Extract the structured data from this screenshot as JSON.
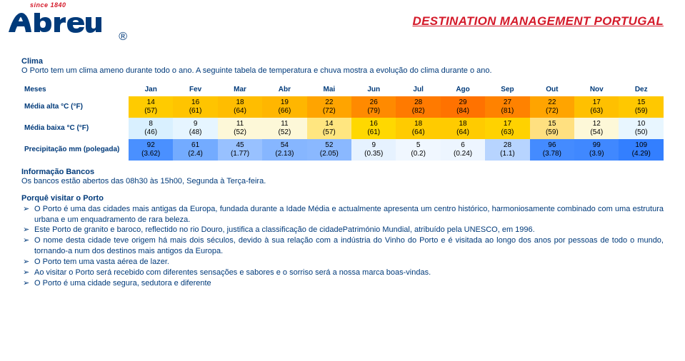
{
  "logo": {
    "since_text": "since 1840",
    "reg_mark": "®",
    "brand_svg_fill": "#003a7a"
  },
  "page_title": "DESTINATION MANAGEMENT PORTUGAL",
  "clima": {
    "label": "Clima",
    "intro": "O Porto tem um clima ameno durante todo o ano. A seguinte tabela de temperatura e chuva mostra a evolução do clima durante o ano."
  },
  "table": {
    "header_label": "Meses",
    "months": [
      "Jan",
      "Fev",
      "Mar",
      "Abr",
      "Mai",
      "Jun",
      "Jul",
      "Ago",
      "Sep",
      "Out",
      "Nov",
      "Dez"
    ],
    "rows": [
      {
        "label": "Média alta °C (°F)",
        "cells": [
          {
            "v1": "14",
            "v2": "(57)",
            "bg": "#ffcb00"
          },
          {
            "v1": "16",
            "v2": "(61)",
            "bg": "#ffc400"
          },
          {
            "v1": "18",
            "v2": "(64)",
            "bg": "#ffbd00"
          },
          {
            "v1": "19",
            "v2": "(66)",
            "bg": "#ffb600"
          },
          {
            "v1": "22",
            "v2": "(72)",
            "bg": "#ffa400"
          },
          {
            "v1": "26",
            "v2": "(79)",
            "bg": "#ff8a00"
          },
          {
            "v1": "28",
            "v2": "(82)",
            "bg": "#ff7a00"
          },
          {
            "v1": "29",
            "v2": "(84)",
            "bg": "#ff7200"
          },
          {
            "v1": "27",
            "v2": "(81)",
            "bg": "#ff8200"
          },
          {
            "v1": "22",
            "v2": "(72)",
            "bg": "#ffa400"
          },
          {
            "v1": "17",
            "v2": "(63)",
            "bg": "#ffc000"
          },
          {
            "v1": "15",
            "v2": "(59)",
            "bg": "#ffc800"
          }
        ]
      },
      {
        "label": "Média baixa °C (°F)",
        "cells": [
          {
            "v1": "8",
            "v2": "(46)",
            "bg": "#d9f0ff"
          },
          {
            "v1": "9",
            "v2": "(48)",
            "bg": "#e6f5ff"
          },
          {
            "v1": "11",
            "v2": "(52)",
            "bg": "#fdf8d8"
          },
          {
            "v1": "11",
            "v2": "(52)",
            "bg": "#fdf8d8"
          },
          {
            "v1": "14",
            "v2": "(57)",
            "bg": "#ffe680"
          },
          {
            "v1": "16",
            "v2": "(61)",
            "bg": "#ffd800"
          },
          {
            "v1": "18",
            "v2": "(64)",
            "bg": "#ffcb00"
          },
          {
            "v1": "18",
            "v2": "(64)",
            "bg": "#ffcb00"
          },
          {
            "v1": "17",
            "v2": "(63)",
            "bg": "#ffd200"
          },
          {
            "v1": "15",
            "v2": "(59)",
            "bg": "#ffe080"
          },
          {
            "v1": "12",
            "v2": "(54)",
            "bg": "#fdf8d8"
          },
          {
            "v1": "10",
            "v2": "(50)",
            "bg": "#e8f6ff"
          }
        ]
      },
      {
        "label": "Precipitação mm (polegada)",
        "cells": [
          {
            "v1": "92",
            "v2": "(3.62)",
            "bg": "#4a90ff"
          },
          {
            "v1": "61",
            "v2": "(2.4)",
            "bg": "#73abff"
          },
          {
            "v1": "45",
            "v2": "(1.77)",
            "bg": "#98c1ff"
          },
          {
            "v1": "54",
            "v2": "(2.13)",
            "bg": "#86b6ff"
          },
          {
            "v1": "52",
            "v2": "(2.05)",
            "bg": "#8ab8ff"
          },
          {
            "v1": "9",
            "v2": "(0.35)",
            "bg": "#e6f2ff"
          },
          {
            "v1": "5",
            "v2": "(0.2)",
            "bg": "#f0f7ff"
          },
          {
            "v1": "6",
            "v2": "(0.24)",
            "bg": "#edf5ff"
          },
          {
            "v1": "28",
            "v2": "(1.1)",
            "bg": "#b7d4ff"
          },
          {
            "v1": "96",
            "v2": "(3.78)",
            "bg": "#448bff"
          },
          {
            "v1": "99",
            "v2": "(3.9)",
            "bg": "#4088ff"
          },
          {
            "v1": "109",
            "v2": "(4.29)",
            "bg": "#337fff"
          }
        ]
      }
    ]
  },
  "bank": {
    "label": "Informação Bancos",
    "text": "Os bancos estão abertos das 08h30 às 15h00, Segunda à Terça-feira."
  },
  "visit": {
    "label": "Porquê visitar o Porto",
    "bullets": [
      "O Porto é uma das cidades mais antigas da Europa, fundada durante a Idade Média e actualmente apresenta um centro histórico, harmoniosamente combinado com uma estrutura urbana e um enquadramento de rara beleza.",
      "Este Porto de granito e baroco, reflectido no rio Douro, justifica a classificação de cidadePatrimónio Mundial, atribuído pela UNESCO, em 1996.",
      "O nome desta cidade teve origem há mais dois séculos, devido à sua relação com a indústria do Vinho do Porto e é visitada ao longo dos anos por pessoas de todo o mundo, tornando-a num dos destinos mais antigos da Europa.",
      "O Porto tem uma vasta aérea de lazer.",
      "Ao visitar o Porto será recebido com diferentes sensações e sabores e o sorriso será a nossa marca boas-vindas.",
      "O Porto é uma cidade segura, sedutora e diferente"
    ]
  }
}
